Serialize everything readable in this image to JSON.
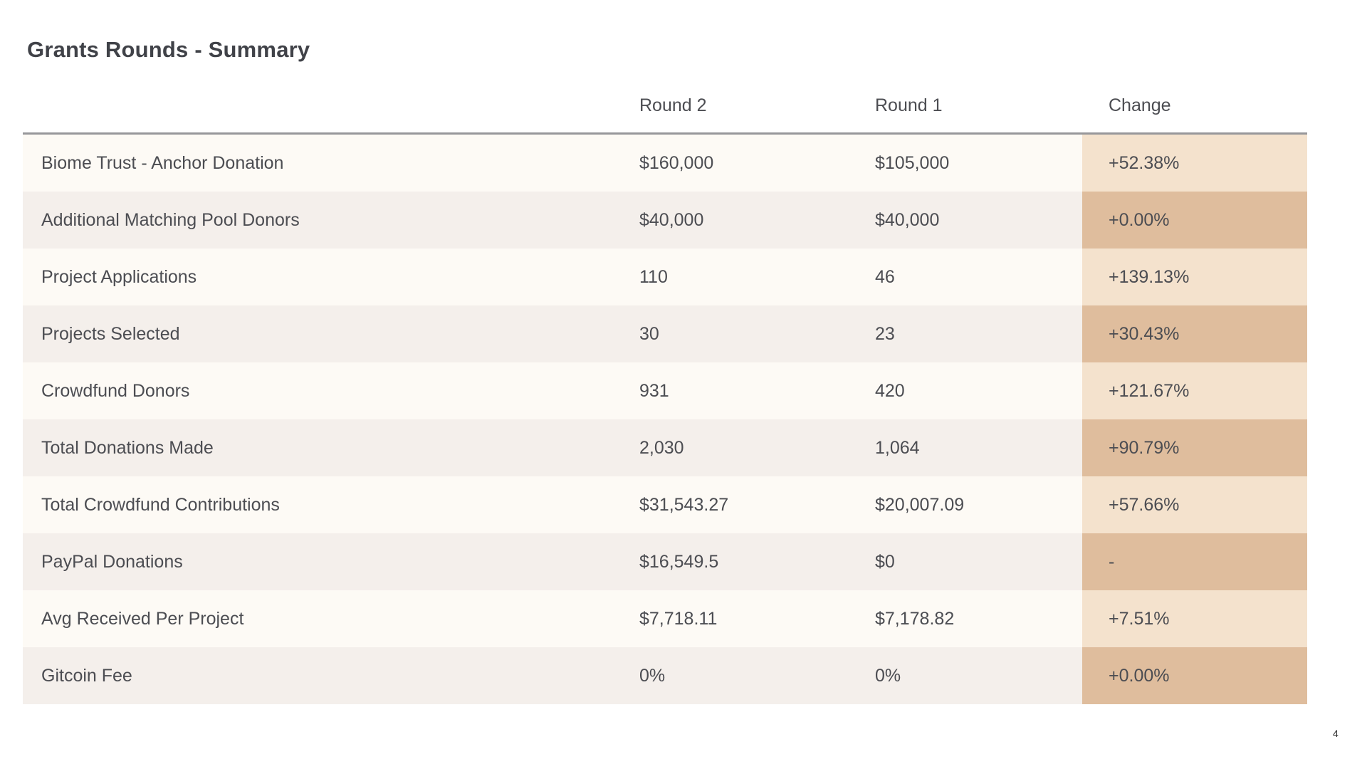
{
  "page": {
    "title": "Grants Rounds - Summary",
    "page_number": "4"
  },
  "table": {
    "columns": {
      "metric": "",
      "round2": "Round 2",
      "round1": "Round 1",
      "change": "Change"
    },
    "rows": [
      {
        "label": "Biome Trust - Anchor Donation",
        "round2": "$160,000",
        "round1": "$105,000",
        "change": "+52.38%"
      },
      {
        "label": "Additional Matching Pool Donors",
        "round2": "$40,000",
        "round1": "$40,000",
        "change": "+0.00%"
      },
      {
        "label": "Project Applications",
        "round2": "110",
        "round1": "46",
        "change": "+139.13%"
      },
      {
        "label": "Projects Selected",
        "round2": "30",
        "round1": "23",
        "change": "+30.43%"
      },
      {
        "label": "Crowdfund Donors",
        "round2": "931",
        "round1": "420",
        "change": "+121.67%"
      },
      {
        "label": "Total Donations Made",
        "round2": "2,030",
        "round1": "1,064",
        "change": "+90.79%"
      },
      {
        "label": "Total Crowdfund Contributions",
        "round2": "$31,543.27",
        "round1": "$20,007.09",
        "change": "+57.66%"
      },
      {
        "label": "PayPal Donations",
        "round2": "$16,549.5",
        "round1": "$0",
        "change": "-"
      },
      {
        "label": "Avg Received Per Project",
        "round2": "$7,718.11",
        "round1": "$7,178.82",
        "change": "+7.51%"
      },
      {
        "label": "Gitcoin Fee",
        "round2": "0%",
        "round1": "0%",
        "change": "+0.00%"
      }
    ]
  },
  "colors": {
    "row_odd_bg": "#fdfaf5",
    "row_even_bg": "#f4efeb",
    "change_odd_bg": "#f4e2cd",
    "change_even_bg": "#dfbd9d",
    "header_divider": "#97979a",
    "text": "#4c4d52",
    "title": "#404248"
  }
}
